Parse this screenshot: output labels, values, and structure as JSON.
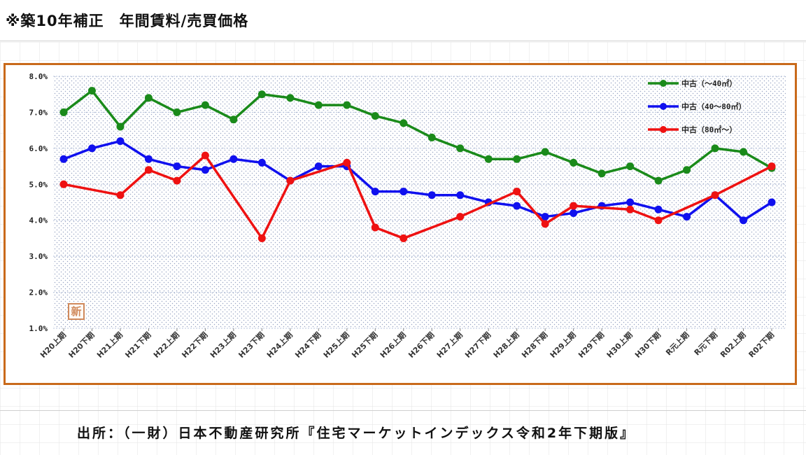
{
  "header": {
    "title": "※築10年補正　年間賃料/売買価格"
  },
  "source": {
    "text": "出所：（一財）日本不動産研究所『住宅マーケットインデックス令和2年下期版』"
  },
  "badge": {
    "text": "新"
  },
  "colors": {
    "frame": "#c96a1b",
    "green": "#1a8a1a",
    "blue": "#1010ee",
    "red": "#ee1111"
  },
  "chart_data": {
    "type": "line",
    "title": "",
    "xlabel": "",
    "ylabel": "",
    "ylim": [
      1.0,
      8.0
    ],
    "y_ticks": [
      "1.0%",
      "2.0%",
      "3.0%",
      "4.0%",
      "5.0%",
      "6.0%",
      "7.0%",
      "8.0%"
    ],
    "grid": true,
    "legend_position": "top-right",
    "categories": [
      "H20上期",
      "H20下期",
      "H21上期",
      "H21下期",
      "H22上期",
      "H22下期",
      "H23上期",
      "H23下期",
      "H24上期",
      "H24下期",
      "H25上期",
      "H25下期",
      "H26上期",
      "H26下期",
      "H27上期",
      "H27下期",
      "H28上期",
      "H28下期",
      "H29上期",
      "H29下期",
      "H30上期",
      "H30下期",
      "R元上期",
      "R元下期",
      "R02上期",
      "R02下期"
    ],
    "series": [
      {
        "name": "中古（～40㎡）",
        "color": "#1a8a1a",
        "values": [
          7.0,
          7.6,
          6.6,
          7.4,
          7.0,
          7.2,
          6.8,
          7.5,
          7.4,
          7.2,
          7.2,
          6.9,
          6.7,
          6.3,
          6.0,
          5.7,
          5.7,
          5.9,
          5.6,
          5.3,
          5.5,
          5.1,
          5.4,
          6.0,
          5.9,
          5.45
        ]
      },
      {
        "name": "中古（40～80㎡）",
        "color": "#1010ee",
        "values": [
          5.7,
          6.0,
          6.2,
          5.7,
          5.5,
          5.4,
          5.7,
          5.6,
          5.1,
          5.5,
          5.5,
          4.8,
          4.8,
          4.7,
          4.7,
          4.5,
          4.4,
          4.1,
          4.2,
          4.4,
          4.5,
          4.3,
          4.1,
          4.7,
          4.0,
          4.5
        ]
      },
      {
        "name": "中古（80㎡～）",
        "color": "#ee1111",
        "values": [
          5.0,
          null,
          4.7,
          5.4,
          5.1,
          5.8,
          null,
          3.5,
          5.1,
          null,
          5.6,
          3.8,
          3.5,
          null,
          4.1,
          null,
          4.8,
          3.9,
          4.4,
          null,
          4.3,
          4.0,
          null,
          4.7,
          null,
          5.5
        ]
      }
    ]
  }
}
